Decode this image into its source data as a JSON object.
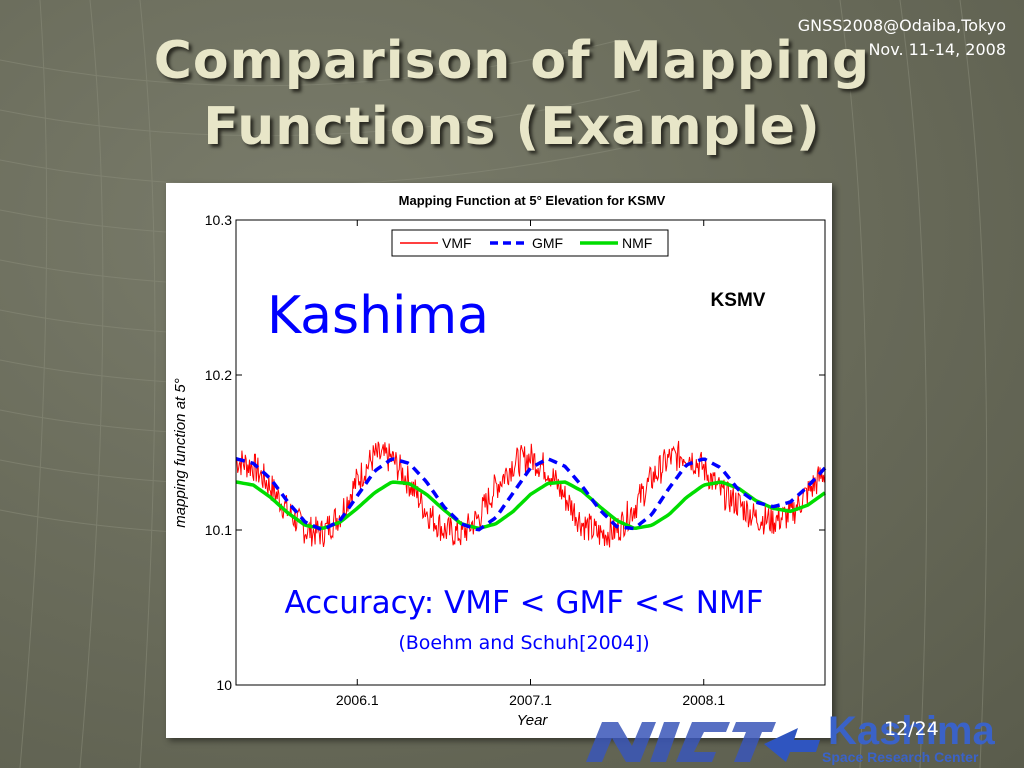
{
  "slide": {
    "conference_line1": "GNSS2008@Odaiba,Tokyo",
    "conference_line2": "Nov. 11-14, 2008",
    "title_line1": "Comparison of Mapping",
    "title_line2": "Functions (Example)",
    "page": "12/24",
    "logo_text": "Kashima",
    "logo_subtext": "Space Research Center",
    "colors": {
      "title": "#e8e6c8",
      "annotation_blue": "#0000ff"
    }
  },
  "chart_data": {
    "type": "line",
    "title": "Mapping Function at 5° Elevation for KSMV",
    "xlabel": "Year",
    "ylabel": "mapping function at 5°",
    "xlim": [
      2005.4,
      2008.8
    ],
    "ylim": [
      10.0,
      10.3
    ],
    "x_ticks": [
      2006.1,
      2007.1,
      2008.1
    ],
    "x_tick_labels": [
      "2006.1",
      "2007.1",
      "2008.1"
    ],
    "y_ticks": [
      10.0,
      10.1,
      10.2,
      10.3
    ],
    "y_tick_labels": [
      "10",
      "10.1",
      "10.2",
      "10.3"
    ],
    "legend_placement": "top-center",
    "station_label": "KSMV",
    "annotation_main": "Kashima",
    "accuracy_text": "Accuracy: VMF < GMF << NMF",
    "reference_text": "(Boehm and Schuh[2004])",
    "series": [
      {
        "name": "VMF",
        "color": "#ff0000",
        "style": "solid-noisy",
        "x": [
          2005.4,
          2005.5,
          2005.6,
          2005.7,
          2005.8,
          2005.9,
          2006.0,
          2006.1,
          2006.2,
          2006.3,
          2006.4,
          2006.5,
          2006.6,
          2006.7,
          2006.8,
          2006.9,
          2007.0,
          2007.1,
          2007.2,
          2007.3,
          2007.4,
          2007.5,
          2007.6,
          2007.7,
          2007.8,
          2007.9,
          2008.0,
          2008.1,
          2008.2,
          2008.3,
          2008.4,
          2008.5,
          2008.6,
          2008.7,
          2008.8
        ],
        "y": [
          10.145,
          10.141,
          10.128,
          10.112,
          10.1,
          10.098,
          10.11,
          10.132,
          10.148,
          10.146,
          10.131,
          10.112,
          10.1,
          10.097,
          10.108,
          10.128,
          10.143,
          10.147,
          10.139,
          10.121,
          10.104,
          10.097,
          10.1,
          10.115,
          10.133,
          10.146,
          10.149,
          10.14,
          10.124,
          10.117,
          10.108,
          10.106,
          10.11,
          10.124,
          10.138
        ]
      },
      {
        "name": "GMF",
        "color": "#0000ff",
        "style": "dashed",
        "x": [
          2005.4,
          2005.5,
          2005.6,
          2005.7,
          2005.8,
          2005.9,
          2006.0,
          2006.1,
          2006.2,
          2006.3,
          2006.4,
          2006.5,
          2006.6,
          2006.7,
          2006.8,
          2006.9,
          2007.0,
          2007.1,
          2007.2,
          2007.3,
          2007.4,
          2007.5,
          2007.6,
          2007.7,
          2007.8,
          2007.9,
          2008.0,
          2008.1,
          2008.2,
          2008.3,
          2008.4,
          2008.5,
          2008.6,
          2008.7,
          2008.8
        ],
        "y": [
          10.146,
          10.143,
          10.133,
          10.118,
          10.105,
          10.1,
          10.106,
          10.122,
          10.138,
          10.146,
          10.143,
          10.131,
          10.115,
          10.104,
          10.1,
          10.108,
          10.124,
          10.14,
          10.146,
          10.141,
          10.128,
          10.113,
          10.102,
          10.101,
          10.11,
          10.127,
          10.142,
          10.146,
          10.14,
          10.126,
          10.118,
          10.115,
          10.118,
          10.128,
          10.14
        ]
      },
      {
        "name": "NMF",
        "color": "#00dd00",
        "style": "solid-thick",
        "x": [
          2005.4,
          2005.5,
          2005.6,
          2005.7,
          2005.8,
          2005.9,
          2006.0,
          2006.1,
          2006.2,
          2006.3,
          2006.4,
          2006.5,
          2006.6,
          2006.7,
          2006.8,
          2006.9,
          2007.0,
          2007.1,
          2007.2,
          2007.3,
          2007.4,
          2007.5,
          2007.6,
          2007.7,
          2007.8,
          2007.9,
          2008.0,
          2008.1,
          2008.2,
          2008.3,
          2008.4,
          2008.5,
          2008.6,
          2008.7,
          2008.8
        ],
        "y": [
          10.131,
          10.129,
          10.121,
          10.111,
          10.103,
          10.101,
          10.105,
          10.114,
          10.124,
          10.131,
          10.13,
          10.123,
          10.113,
          10.104,
          10.101,
          10.104,
          10.112,
          10.123,
          10.13,
          10.131,
          10.125,
          10.115,
          10.106,
          10.101,
          10.103,
          10.11,
          10.121,
          10.129,
          10.131,
          10.127,
          10.119,
          10.114,
          10.112,
          10.116,
          10.124
        ]
      }
    ]
  }
}
